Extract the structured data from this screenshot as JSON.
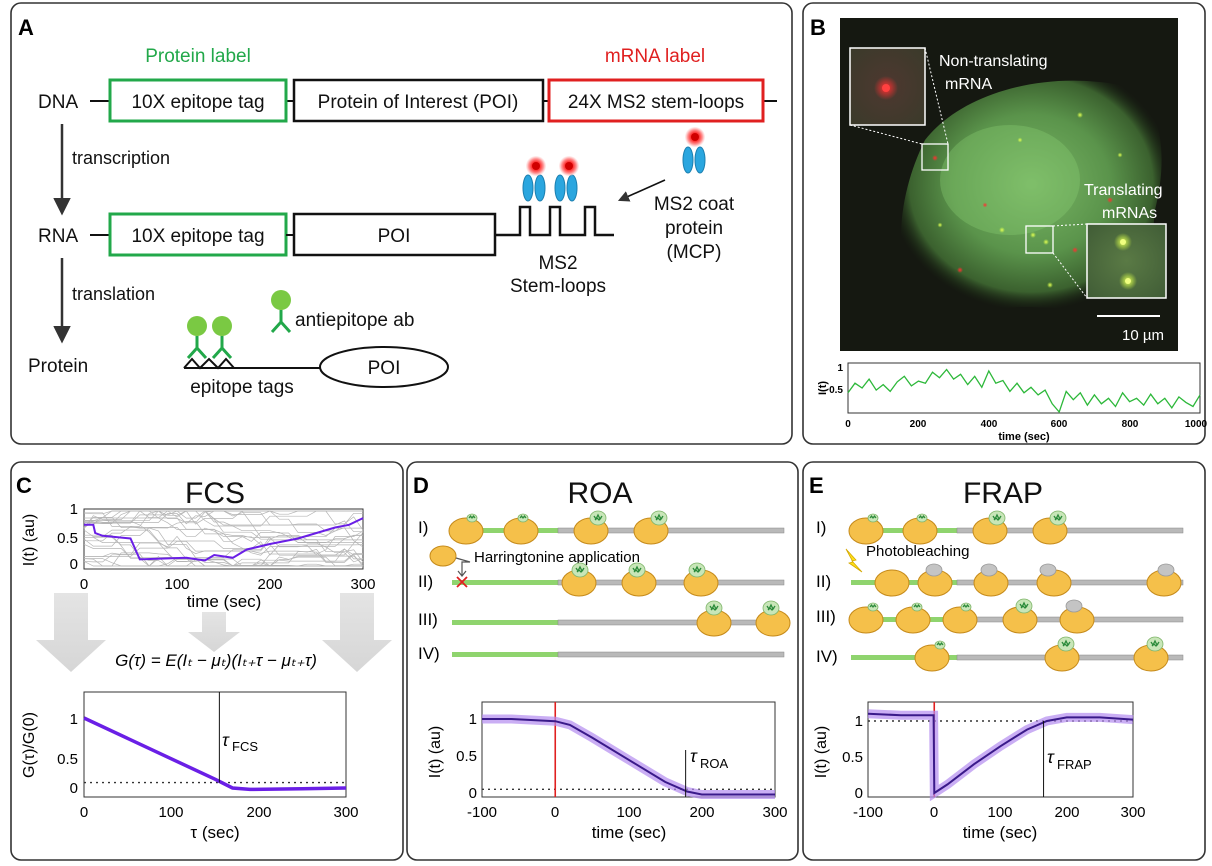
{
  "panelA": {
    "letter": "A",
    "protein_label": "Protein label",
    "mrna_label": "mRNA label",
    "dna": "DNA",
    "tag": "10X epitope tag",
    "poi_long": "Protein of Interest (POI)",
    "ms2_loops": "24X MS2 stem-loops",
    "transcription": "transcription",
    "rna": "RNA",
    "poi": "POI",
    "ms2_l1": "MS2",
    "ms2_l2": "Stem-loops",
    "mcp_l1": "MS2 coat",
    "mcp_l2": "protein",
    "mcp_l3": "(MCP)",
    "translation": "translation",
    "protein": "Protein",
    "antiepitope": "antiepitope ab",
    "epitope_tags": "epitope tags"
  },
  "panelB": {
    "letter": "B",
    "nontrans_l1": "Non-translating",
    "nontrans_l2": "mRNA",
    "trans_l1": "Translating",
    "trans_l2": "mRNAs",
    "scale": "10 µm",
    "trace_ylabel": "I(t)",
    "trace_xlabel": "time (sec)",
    "trace_yticks": [
      "1",
      "0.5"
    ],
    "trace_xticks": [
      "0",
      "200",
      "400",
      "600",
      "800",
      "1000"
    ]
  },
  "panelC": {
    "letter": "C",
    "title": "FCS",
    "top_ylabel": "I(t) (au)",
    "top_xlabel": "time (sec)",
    "top_yticks": [
      "1",
      "0.5",
      "0"
    ],
    "top_xticks": [
      "0",
      "100",
      "200",
      "300"
    ],
    "formula": "G(τ) = E(Iₜ − μₜ)(Iₜ₊τ − μₜ₊τ)",
    "bot_ylabel": "G(τ)/G(0)",
    "bot_xlabel": "τ (sec)",
    "bot_yticks": [
      "1",
      "0.5",
      "0"
    ],
    "bot_xticks": [
      "0",
      "100",
      "200",
      "300"
    ],
    "tau_sym": "τ",
    "tau_sub": "FCS"
  },
  "panelD": {
    "letter": "D",
    "title": "ROA",
    "rows": [
      "I)",
      "II)",
      "III)",
      "IV)"
    ],
    "harringtonine": "Harringtonine application",
    "ylabel": "I(t) (au)",
    "xlabel": "time (sec)",
    "yticks": [
      "1",
      "0.5",
      "0"
    ],
    "xticks": [
      "-100",
      "0",
      "100",
      "200",
      "300"
    ],
    "tau_sym": "τ",
    "tau_sub": "ROA"
  },
  "panelE": {
    "letter": "E",
    "title": "FRAP",
    "rows": [
      "I)",
      "II)",
      "III)",
      "IV)"
    ],
    "photobleaching": "Photobleaching",
    "ylabel": "I(t) (au)",
    "xlabel": "time (sec)",
    "yticks": [
      "1",
      "0.5",
      "0"
    ],
    "xticks": [
      "-100",
      "0",
      "100",
      "200",
      "300"
    ],
    "tau_sym": "τ",
    "tau_sub": "FRAP"
  },
  "colors": {
    "green": "#22a84a",
    "red": "#e02020",
    "purple": "#6a1fe6",
    "purple_light": "#b38cf0",
    "ribosome": "#f5c04a",
    "gray_trace": "#b5b5b5",
    "mcp_blue": "#2aa6df"
  },
  "chart_data": [
    {
      "type": "line",
      "panel": "B",
      "ylabel": "I(t)",
      "xlabel": "time (sec)",
      "xlim": [
        0,
        1000
      ],
      "ylim": [
        0.3,
        1.0
      ],
      "series": [
        {
          "x": [
            0,
            20,
            40,
            60,
            80,
            100,
            120,
            140,
            160,
            180,
            200,
            220,
            240,
            260,
            280,
            300,
            320,
            340,
            360,
            380,
            400,
            420,
            440,
            460,
            480,
            500,
            520,
            540,
            560,
            580,
            600,
            620,
            640,
            660,
            680,
            700,
            720,
            740,
            760,
            780,
            800,
            820,
            840,
            860,
            880,
            900,
            920,
            940,
            960,
            980,
            1000
          ],
          "values": [
            0.58,
            0.72,
            0.65,
            0.78,
            0.62,
            0.7,
            0.6,
            0.74,
            0.82,
            0.68,
            0.75,
            0.72,
            0.88,
            0.8,
            0.92,
            0.78,
            0.85,
            0.7,
            0.82,
            0.66,
            0.9,
            0.72,
            0.76,
            0.6,
            0.72,
            0.58,
            0.66,
            0.55,
            0.62,
            0.42,
            0.3,
            0.6,
            0.48,
            0.58,
            0.4,
            0.55,
            0.42,
            0.5,
            0.38,
            0.58,
            0.45,
            0.5,
            0.4,
            0.56,
            0.42,
            0.5,
            0.36,
            0.52,
            0.44,
            0.38,
            0.55
          ]
        }
      ]
    },
    {
      "type": "line",
      "panel": "C-top",
      "ylabel": "I(t) (au)",
      "xlabel": "time (sec)",
      "xlim": [
        0,
        300
      ],
      "ylim": [
        0,
        1
      ],
      "series": [
        {
          "x": [
            0,
            10,
            12,
            20,
            50,
            60,
            110,
            130,
            140,
            160,
            175,
            200,
            230,
            250,
            270,
            285,
            300
          ],
          "values": [
            0.75,
            0.75,
            0.6,
            0.55,
            0.5,
            0.12,
            0.15,
            0.1,
            0.2,
            0.15,
            0.3,
            0.4,
            0.5,
            0.6,
            0.7,
            0.75,
            0.87
          ]
        }
      ]
    },
    {
      "type": "line",
      "panel": "C-bottom",
      "ylabel": "G(τ)/G(0)",
      "xlabel": "τ (sec)",
      "xlim": [
        0,
        300
      ],
      "ylim": [
        -0.1,
        1.15
      ],
      "series": [
        {
          "x": [
            0,
            50,
            100,
            150,
            170,
            190,
            250,
            300
          ],
          "values": [
            1.0,
            0.7,
            0.4,
            0.1,
            -0.03,
            -0.05,
            -0.04,
            -0.03
          ]
        }
      ]
    },
    {
      "type": "line",
      "panel": "D",
      "ylabel": "I(t) (au)",
      "xlabel": "time (sec)",
      "xlim": [
        -100,
        300
      ],
      "ylim": [
        -0.05,
        1.2
      ],
      "series": [
        {
          "x": [
            -100,
            -60,
            -20,
            0,
            20,
            50,
            100,
            150,
            180,
            200,
            250,
            300
          ],
          "values": [
            1.0,
            1.0,
            0.98,
            0.97,
            0.92,
            0.75,
            0.45,
            0.15,
            0.02,
            -0.02,
            -0.02,
            -0.02
          ]
        }
      ]
    },
    {
      "type": "line",
      "panel": "E",
      "ylabel": "I(t) (au)",
      "xlabel": "time (sec)",
      "xlim": [
        -100,
        300
      ],
      "ylim": [
        -0.05,
        1.25
      ],
      "series": [
        {
          "x": [
            -100,
            -50,
            -1,
            0,
            20,
            60,
            100,
            140,
            170,
            200,
            250,
            300
          ],
          "values": [
            1.1,
            1.08,
            1.08,
            0.0,
            0.12,
            0.4,
            0.65,
            0.88,
            1.0,
            1.05,
            1.05,
            1.02
          ]
        }
      ]
    }
  ]
}
